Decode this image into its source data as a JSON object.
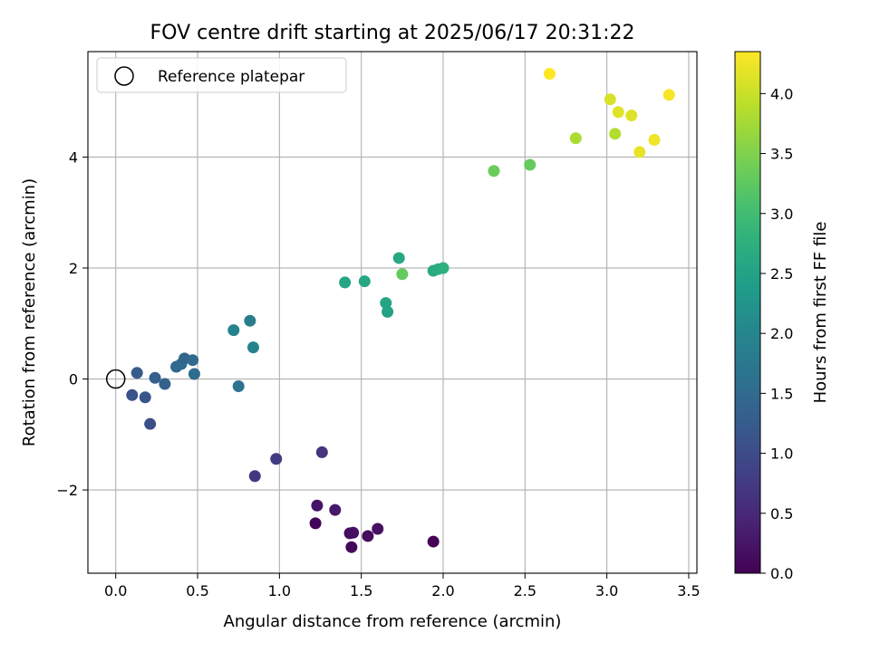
{
  "chart_data": {
    "type": "scatter",
    "title": "FOV centre drift starting at 2025/06/17 20:31:22",
    "xlabel": "Angular distance from reference (arcmin)",
    "ylabel": "Rotation from reference (arcmin)",
    "xlim": [
      -0.17,
      3.55
    ],
    "ylim": [
      -3.5,
      5.9
    ],
    "x_ticks": [
      0.0,
      0.5,
      1.0,
      1.5,
      2.0,
      2.5,
      3.0,
      3.5
    ],
    "x_tick_labels": [
      "0.0",
      "0.5",
      "1.0",
      "1.5",
      "2.0",
      "2.5",
      "3.0",
      "3.5"
    ],
    "y_ticks": [
      -2,
      0,
      2,
      4
    ],
    "y_tick_labels": [
      "−2",
      "0",
      "2",
      "4"
    ],
    "grid": true,
    "legend": {
      "placement": "upper-left",
      "label": "Reference platepar"
    },
    "reference_point": {
      "x": 0.0,
      "y": 0.0
    },
    "colorbar": {
      "label": "Hours from first FF file",
      "colormap": "viridis",
      "range": [
        0.0,
        4.35
      ],
      "ticks": [
        0.0,
        0.5,
        1.0,
        1.5,
        2.0,
        2.5,
        3.0,
        3.5,
        4.0
      ],
      "tick_labels": [
        "0.0",
        "0.5",
        "1.0",
        "1.5",
        "2.0",
        "2.5",
        "3.0",
        "3.5",
        "4.0"
      ]
    },
    "points": [
      {
        "x": 1.22,
        "y": -2.6,
        "c": 0.05
      },
      {
        "x": 1.44,
        "y": -3.03,
        "c": 0.1
      },
      {
        "x": 1.54,
        "y": -2.83,
        "c": 0.12
      },
      {
        "x": 1.43,
        "y": -2.78,
        "c": 0.15
      },
      {
        "x": 1.45,
        "y": -2.77,
        "c": 0.18
      },
      {
        "x": 1.6,
        "y": -2.7,
        "c": 0.2
      },
      {
        "x": 1.94,
        "y": -2.93,
        "c": 0.02
      },
      {
        "x": 1.23,
        "y": -2.28,
        "c": 0.25
      },
      {
        "x": 1.34,
        "y": -2.36,
        "c": 0.3
      },
      {
        "x": 1.26,
        "y": -1.32,
        "c": 0.65
      },
      {
        "x": 0.98,
        "y": -1.44,
        "c": 0.75
      },
      {
        "x": 0.85,
        "y": -1.75,
        "c": 0.7
      },
      {
        "x": 0.21,
        "y": -0.81,
        "c": 1.05
      },
      {
        "x": 0.1,
        "y": -0.29,
        "c": 1.1
      },
      {
        "x": 0.18,
        "y": -0.33,
        "c": 1.15
      },
      {
        "x": 0.13,
        "y": 0.11,
        "c": 1.25
      },
      {
        "x": 0.24,
        "y": 0.02,
        "c": 1.3
      },
      {
        "x": 0.3,
        "y": -0.09,
        "c": 1.35
      },
      {
        "x": 0.37,
        "y": 0.22,
        "c": 1.45
      },
      {
        "x": 0.4,
        "y": 0.27,
        "c": 1.48
      },
      {
        "x": 0.42,
        "y": 0.37,
        "c": 1.4
      },
      {
        "x": 0.47,
        "y": 0.34,
        "c": 1.5
      },
      {
        "x": 0.48,
        "y": 0.09,
        "c": 1.55
      },
      {
        "x": 0.75,
        "y": -0.13,
        "c": 1.65
      },
      {
        "x": 0.72,
        "y": 0.88,
        "c": 1.95
      },
      {
        "x": 0.82,
        "y": 1.05,
        "c": 1.85
      },
      {
        "x": 0.84,
        "y": 0.57,
        "c": 1.95
      },
      {
        "x": 1.4,
        "y": 1.74,
        "c": 2.55
      },
      {
        "x": 1.52,
        "y": 1.76,
        "c": 2.6
      },
      {
        "x": 1.65,
        "y": 1.37,
        "c": 2.55
      },
      {
        "x": 1.66,
        "y": 1.21,
        "c": 2.5
      },
      {
        "x": 1.73,
        "y": 2.18,
        "c": 2.6
      },
      {
        "x": 1.75,
        "y": 1.89,
        "c": 3.3
      },
      {
        "x": 1.94,
        "y": 1.95,
        "c": 2.65
      },
      {
        "x": 1.97,
        "y": 1.98,
        "c": 2.7
      },
      {
        "x": 2.0,
        "y": 2.0,
        "c": 2.75
      },
      {
        "x": 2.31,
        "y": 3.75,
        "c": 3.35
      },
      {
        "x": 2.53,
        "y": 3.86,
        "c": 3.3
      },
      {
        "x": 2.81,
        "y": 4.34,
        "c": 3.8
      },
      {
        "x": 3.05,
        "y": 4.42,
        "c": 3.85
      },
      {
        "x": 3.02,
        "y": 5.04,
        "c": 4.1
      },
      {
        "x": 3.07,
        "y": 4.81,
        "c": 4.15
      },
      {
        "x": 3.15,
        "y": 4.75,
        "c": 4.15
      },
      {
        "x": 3.2,
        "y": 4.09,
        "c": 4.2
      },
      {
        "x": 3.29,
        "y": 4.31,
        "c": 4.25
      },
      {
        "x": 3.38,
        "y": 5.12,
        "c": 4.3
      },
      {
        "x": 2.65,
        "y": 5.5,
        "c": 4.35
      }
    ]
  }
}
